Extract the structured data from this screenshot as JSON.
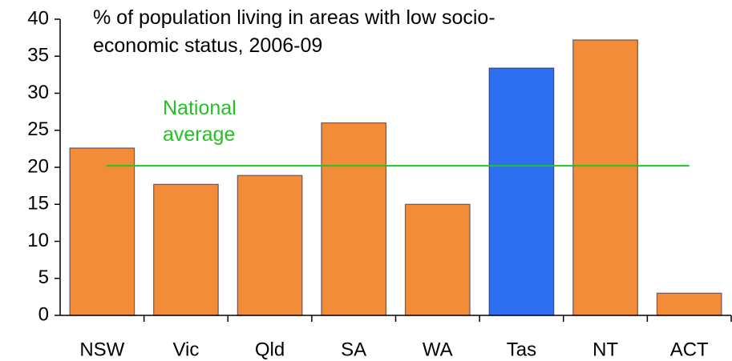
{
  "chart_data": {
    "type": "bar",
    "title": "% of population living in areas with low socio-economic status, 2006-09",
    "categories": [
      "NSW",
      "Vic",
      "Qld",
      "SA",
      "WA",
      "Tas",
      "NT",
      "ACT"
    ],
    "values": [
      22.6,
      17.7,
      18.9,
      26.0,
      15.0,
      33.4,
      37.2,
      3.0
    ],
    "colors": [
      "#f28c38",
      "#f28c38",
      "#f28c38",
      "#f28c38",
      "#f28c38",
      "#2e6ff2",
      "#f28c38",
      "#f28c38"
    ],
    "ylim": [
      0,
      40
    ],
    "yticks": [
      0,
      5,
      10,
      15,
      20,
      25,
      30,
      35,
      40
    ],
    "reference_line": {
      "value": 20.2,
      "label": "National average",
      "color": "#22c322"
    }
  }
}
